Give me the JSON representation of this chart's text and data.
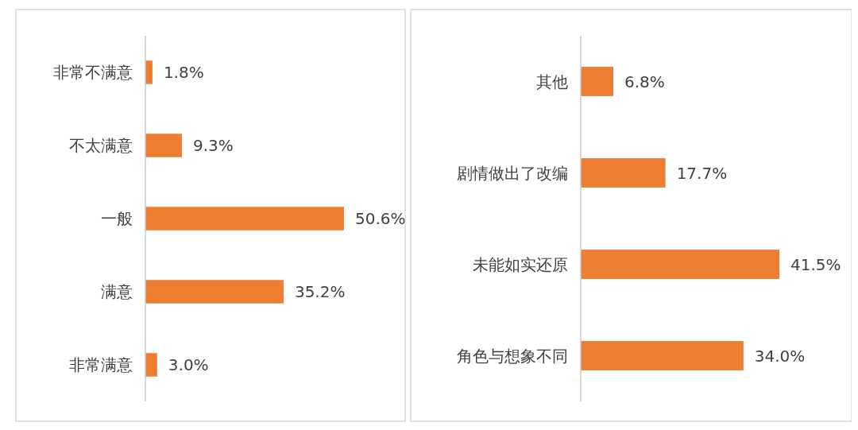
{
  "chart_data": [
    {
      "type": "bar",
      "orientation": "horizontal",
      "categories": [
        "非常不满意",
        "不太满意",
        "一般",
        "满意",
        "非常满意"
      ],
      "values": [
        1.8,
        9.3,
        50.6,
        35.2,
        3.0
      ],
      "value_labels": [
        "1.8%",
        "9.3%",
        "50.6%",
        "35.2%",
        "3.0%"
      ],
      "color": "#ed7d31"
    },
    {
      "type": "bar",
      "orientation": "horizontal",
      "categories": [
        "其他",
        "剧情做出了改编",
        "未能如实还原",
        "角色与想象不同"
      ],
      "values": [
        6.8,
        17.7,
        41.5,
        34.0
      ],
      "value_labels": [
        "6.8%",
        "17.7%",
        "41.5%",
        "34.0%"
      ],
      "color": "#ed7d31"
    }
  ]
}
